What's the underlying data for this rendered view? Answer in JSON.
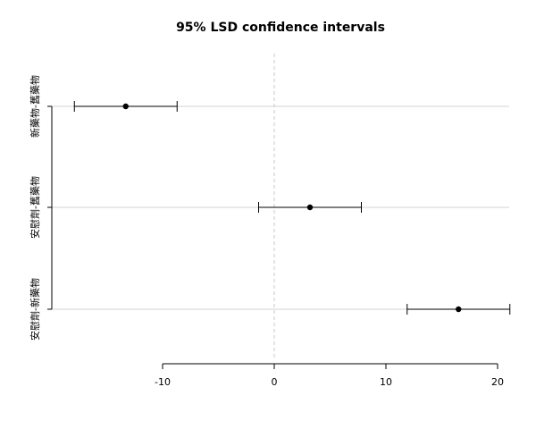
{
  "chart_data": {
    "type": "scatter",
    "title": "95% LSD confidence intervals",
    "xlabel": "",
    "ylabel": "",
    "xlim": [
      -20,
      21
    ],
    "x_ticks": [
      -10,
      0,
      10,
      20
    ],
    "x_tick_labels": [
      "-10",
      "0",
      "10",
      "20"
    ],
    "reference_line": 0,
    "grid": true,
    "colors": {
      "points": "#000000",
      "grid": "#d3d3d3",
      "reference": "#c8c8c8"
    },
    "categories": [
      "新藥物-舊藥物",
      "安慰劑-舊藥物",
      "安慰劑-新藥物"
    ],
    "series": [
      {
        "estimate": [
          -13.3,
          3.2,
          16.5
        ],
        "lower": [
          -17.9,
          -1.4,
          11.9
        ],
        "upper": [
          -8.7,
          7.8,
          21.1
        ]
      }
    ]
  }
}
